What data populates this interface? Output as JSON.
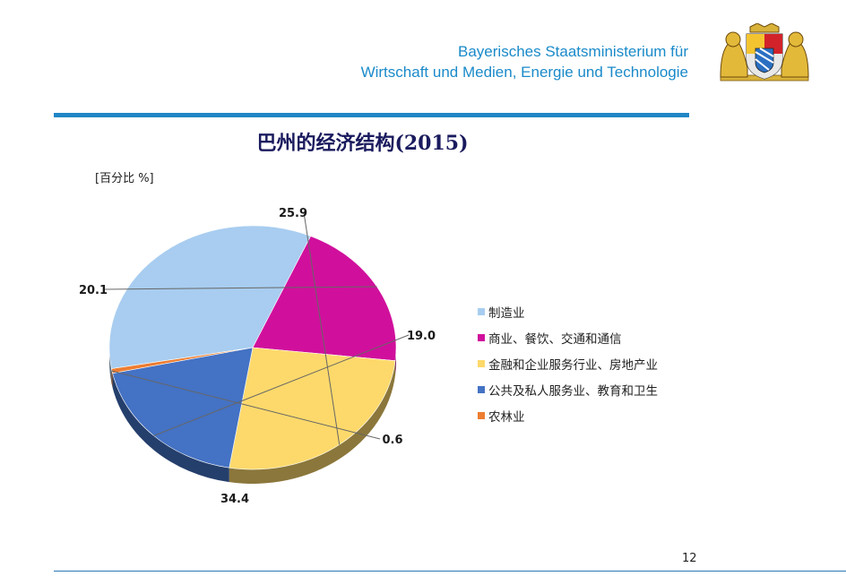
{
  "header": {
    "ministry_line1": "Bayerisches Staatsministerium für",
    "ministry_line2": "Wirtschaft und Medien, Energie und Technologie",
    "crest_icon": "bavarian-coat-of-arms-icon"
  },
  "footer": {
    "page_number": "12"
  },
  "chart_data": {
    "type": "pie",
    "title": "巴州的经济结构(2015)",
    "unit_label": "[百分比 %]",
    "legend_position": "right",
    "slices": [
      {
        "label": "制造业",
        "value": 34.4,
        "value_label": "34.4",
        "color": "#a8cdf0"
      },
      {
        "label": "商业、餐饮、交通和通信",
        "value": 20.1,
        "value_label": "20.1",
        "color": "#d0109c"
      },
      {
        "label": "金融和企业服务行业、房地产业",
        "value": 25.9,
        "value_label": "25.9",
        "color": "#fdd96b"
      },
      {
        "label": "公共及私人服务业、教育和卫生",
        "value": 19.0,
        "value_label": "19.0",
        "color": "#4472c4"
      },
      {
        "label": "农林业",
        "value": 0.6,
        "value_label": "0.6",
        "color": "#ed7d31"
      }
    ]
  }
}
